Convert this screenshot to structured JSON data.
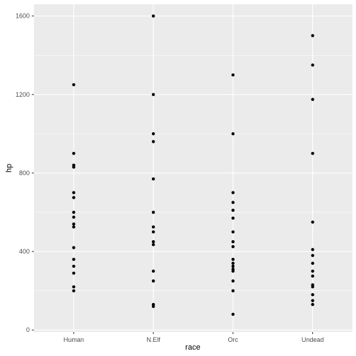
{
  "chart_data": {
    "type": "scatter",
    "title": "",
    "xlabel": "race",
    "ylabel": "hp",
    "categories": [
      "Human",
      "N.Elf",
      "Orc",
      "Undead"
    ],
    "y_ticks": [
      0,
      400,
      800,
      1200,
      1600
    ],
    "y_tick_labels": [
      "0",
      "400",
      "800",
      "1200",
      "1600"
    ],
    "ylim": [
      -10,
      1660
    ],
    "grid": true,
    "legend": "none",
    "colors": {
      "panel": "#ebebeb",
      "grid": "#ffffff",
      "point": "#000000",
      "tick_text": "#4d4d4d"
    },
    "points": {
      "Human": [
        1250,
        900,
        840,
        830,
        700,
        675,
        600,
        575,
        540,
        525,
        420,
        360,
        325,
        290,
        220,
        200
      ],
      "N.Elf": [
        1600,
        1200,
        1000,
        960,
        770,
        600,
        525,
        500,
        450,
        435,
        300,
        250,
        130,
        120
      ],
      "Orc": [
        1300,
        1000,
        700,
        650,
        610,
        570,
        500,
        450,
        425,
        360,
        340,
        325,
        310,
        300,
        250,
        200,
        80
      ],
      "Undead": [
        1500,
        1350,
        1175,
        900,
        550,
        410,
        380,
        340,
        300,
        275,
        230,
        220,
        180,
        150,
        130
      ]
    }
  }
}
